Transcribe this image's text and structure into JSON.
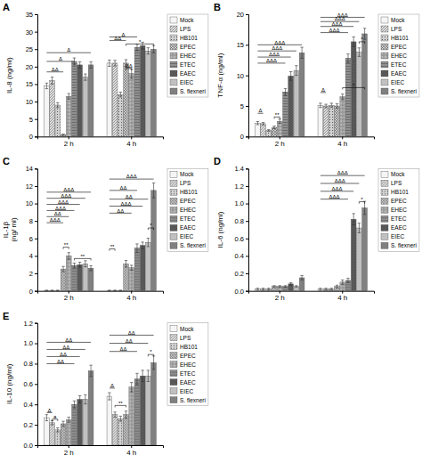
{
  "chart_data": [
    {
      "type": "bar",
      "title": "A",
      "ylabel": "IL-8 (ng/ml)",
      "categories": [
        "2 h",
        "4 h"
      ],
      "ylim": [
        0,
        35
      ],
      "yticks": [
        0,
        5,
        10,
        15,
        20,
        25,
        30,
        35
      ],
      "grid": false,
      "legend": "right",
      "series": [
        {
          "name": "Mock",
          "color": "#f5f5f5",
          "values": [
            14.5,
            21.0
          ],
          "errors": [
            0.8,
            0.9
          ]
        },
        {
          "name": "LPS",
          "color": "#e0e0e0",
          "values": [
            16.0,
            21.0
          ],
          "errors": [
            1.0,
            0.8
          ]
        },
        {
          "name": "HB101",
          "color": "#d0d0d0",
          "values": [
            9.0,
            12.0
          ],
          "errors": [
            0.7,
            0.7
          ]
        },
        {
          "name": "EPEC",
          "color": "#d0d0d0",
          "values": [
            0.5,
            21.0
          ],
          "errors": [
            0.2,
            1.0
          ]
        },
        {
          "name": "EHEC",
          "color": "#b8b8b8",
          "values": [
            11.5,
            18.0
          ],
          "errors": [
            0.8,
            1.3
          ]
        },
        {
          "name": "ETEC",
          "color": "#909090",
          "values": [
            21.5,
            25.5
          ],
          "errors": [
            1.0,
            0.9
          ]
        },
        {
          "name": "EAEC",
          "color": "#606060",
          "values": [
            20.5,
            26.0
          ],
          "errors": [
            0.9,
            1.0
          ]
        },
        {
          "name": "EIEC",
          "color": "#c0c0c0",
          "values": [
            17.0,
            24.5
          ],
          "errors": [
            0.9,
            0.9
          ]
        },
        {
          "name": "S. flexneri",
          "color": "#808080",
          "values": [
            20.5,
            25.0
          ],
          "errors": [
            0.9,
            1.0
          ]
        }
      ],
      "annotations": [
        {
          "text": "ΔΔ",
          "category": "2 h",
          "from": "Mock",
          "to": "EPEC",
          "y": 18.5
        },
        {
          "text": "Δ",
          "category": "2 h",
          "from": "Mock",
          "to": "ETEC",
          "y": 21.5
        },
        {
          "text": "Δ",
          "category": "2 h",
          "from": "Mock",
          "to": "S. flexneri",
          "y": 24.0
        },
        {
          "text": "ΔΔ",
          "category": "4 h",
          "from": "EPEC",
          "to": "EHEC",
          "y": 19.5,
          "bracket": true
        },
        {
          "text": "ΔΔ",
          "category": "4 h",
          "from": "Mock",
          "to": "EPEC",
          "y": 27.5
        },
        {
          "text": "Δ",
          "category": "4 h",
          "from": "Mock",
          "to": "ETEC",
          "y": 28.5
        },
        {
          "text": "*",
          "category": "4 h",
          "from": "EPEC",
          "to": "S. flexneri",
          "y": 26.5,
          "bracket": true
        }
      ]
    },
    {
      "type": "bar",
      "title": "B",
      "ylabel": "TNF-α (ng/ml)",
      "categories": [
        "2 h",
        "4 h"
      ],
      "ylim": [
        0,
        20
      ],
      "yticks": [
        0,
        5,
        10,
        15,
        20
      ],
      "grid": false,
      "legend": "right",
      "series": [
        {
          "name": "Mock",
          "color": "#f5f5f5",
          "values": [
            2.2,
            5.1
          ],
          "errors": [
            0.25,
            0.35
          ]
        },
        {
          "name": "LPS",
          "color": "#e0e0e0",
          "values": [
            2.1,
            5.0
          ],
          "errors": [
            0.2,
            0.28
          ]
        },
        {
          "name": "HB101",
          "color": "#d0d0d0",
          "values": [
            1.0,
            5.1
          ],
          "errors": [
            0.15,
            0.35
          ]
        },
        {
          "name": "EPEC",
          "color": "#d0d0d0",
          "values": [
            1.5,
            5.0
          ],
          "errors": [
            0.2,
            0.35
          ]
        },
        {
          "name": "EHEC",
          "color": "#b8b8b8",
          "values": [
            2.5,
            6.5
          ],
          "errors": [
            0.35,
            0.45
          ]
        },
        {
          "name": "ETEC",
          "color": "#909090",
          "values": [
            7.3,
            12.8
          ],
          "errors": [
            0.55,
            0.7
          ]
        },
        {
          "name": "EAEC",
          "color": "#606060",
          "values": [
            9.9,
            15.5
          ],
          "errors": [
            0.7,
            0.8
          ]
        },
        {
          "name": "EIEC",
          "color": "#c0c0c0",
          "values": [
            10.8,
            13.8
          ],
          "errors": [
            0.8,
            0.7
          ]
        },
        {
          "name": "S. flexneri",
          "color": "#808080",
          "values": [
            13.7,
            16.8
          ],
          "errors": [
            0.9,
            0.9
          ]
        }
      ],
      "annotations": [
        {
          "text": "ΔΔΔ",
          "category": "2 h",
          "from": "Mock",
          "to": "ETEC",
          "y": 12.0
        },
        {
          "text": "ΔΔΔ",
          "category": "2 h",
          "from": "Mock",
          "to": "EAEC",
          "y": 13.0
        },
        {
          "text": "ΔΔΔ",
          "category": "2 h",
          "from": "Mock",
          "to": "EIEC",
          "y": 14.0
        },
        {
          "text": "ΔΔΔ",
          "category": "2 h",
          "from": "Mock",
          "to": "S. flexneri",
          "y": 15.0
        },
        {
          "text": "Δ",
          "category": "2 h",
          "from": "Mock",
          "to": "LPS",
          "y": 3.8
        },
        {
          "text": "**",
          "category": "2 h",
          "from": "EPEC",
          "to": "EHEC",
          "y": 3.2,
          "bracket": true
        },
        {
          "text": "Δ",
          "category": "4 h",
          "from": "Mock",
          "to": "LPS",
          "y": 7.2
        },
        {
          "text": "*",
          "category": "4 h",
          "from": "EHEC",
          "to": "S. flexneri",
          "y": 8.0,
          "bracket": true
        },
        {
          "text": "ΔΔΔ",
          "category": "4 h",
          "from": "Mock",
          "to": "ETEC",
          "y": 17.0
        },
        {
          "text": "ΔΔΔ",
          "category": "4 h",
          "from": "Mock",
          "to": "EAEC",
          "y": 18.0
        },
        {
          "text": "ΔΔΔ",
          "category": "4 h",
          "from": "Mock",
          "to": "EIEC",
          "y": 18.8
        },
        {
          "text": "ΔΔΔ",
          "category": "4 h",
          "from": "Mock",
          "to": "S. flexneri",
          "y": 19.5
        },
        {
          "text": "*",
          "category": "4 h",
          "from": "EIEC",
          "to": "S. flexneri",
          "y": 15.5,
          "bracket": true
        }
      ]
    },
    {
      "type": "bar",
      "title": "C",
      "ylabel": "IL-1β\n(ng/ ml)",
      "categories": [
        "2 h",
        "4 h"
      ],
      "ylim": [
        0,
        14
      ],
      "yticks": [
        0,
        2,
        4,
        6,
        8,
        10,
        12,
        14
      ],
      "grid": false,
      "legend": "right",
      "series": [
        {
          "name": "Mock",
          "color": "#f5f5f5",
          "values": [
            0.05,
            0.05
          ],
          "errors": [
            0.02,
            0.02
          ]
        },
        {
          "name": "LPS",
          "color": "#e0e0e0",
          "values": [
            0.05,
            0.05
          ],
          "errors": [
            0.02,
            0.02
          ]
        },
        {
          "name": "HB101",
          "color": "#d0d0d0",
          "values": [
            0.05,
            0.05
          ],
          "errors": [
            0.02,
            0.02
          ]
        },
        {
          "name": "EPEC",
          "color": "#d0d0d0",
          "values": [
            2.5,
            3.1
          ],
          "errors": [
            0.3,
            0.38
          ]
        },
        {
          "name": "EHEC",
          "color": "#b8b8b8",
          "values": [
            4.0,
            2.65
          ],
          "errors": [
            0.38,
            0.28
          ]
        },
        {
          "name": "ETEC",
          "color": "#909090",
          "values": [
            2.9,
            4.9
          ],
          "errors": [
            0.28,
            0.48
          ]
        },
        {
          "name": "EAEC",
          "color": "#606060",
          "values": [
            3.0,
            5.2
          ],
          "errors": [
            0.28,
            0.38
          ]
        },
        {
          "name": "EIEC",
          "color": "#c0c0c0",
          "values": [
            3.1,
            5.55
          ],
          "errors": [
            0.35,
            0.48
          ]
        },
        {
          "name": "S. flexneri",
          "color": "#808080",
          "values": [
            2.6,
            11.5
          ],
          "errors": [
            0.28,
            0.85
          ]
        }
      ],
      "annotations": [
        {
          "text": "ΔΔΔ",
          "category": "2 h",
          "from": "Mock",
          "to": "EPEC",
          "y": 7.8
        },
        {
          "text": "ΔΔ",
          "category": "2 h",
          "from": "Mock",
          "to": "EHEC",
          "y": 8.5
        },
        {
          "text": "ΔΔΔ",
          "category": "2 h",
          "from": "Mock",
          "to": "ETEC",
          "y": 9.2
        },
        {
          "text": "ΔΔΔ",
          "category": "2 h",
          "from": "Mock",
          "to": "EAEC",
          "y": 9.9
        },
        {
          "text": "ΔΔΔ",
          "category": "2 h",
          "from": "Mock",
          "to": "EIEC",
          "y": 10.6
        },
        {
          "text": "ΔΔΔ",
          "category": "2 h",
          "from": "Mock",
          "to": "S. flexneri",
          "y": 11.3
        },
        {
          "text": "**",
          "category": "2 h",
          "from": "EPEC",
          "to": "EHEC",
          "y": 5.0,
          "bracket": true
        },
        {
          "text": "**",
          "category": "2 h",
          "from": "ETEC",
          "to": "S. flexneri",
          "y": 3.7,
          "bracket": true
        },
        {
          "text": "ΔΔΔ",
          "category": "4 h",
          "from": "Mock",
          "to": "S. flexneri",
          "y": 12.8
        },
        {
          "text": "ΔΔ",
          "category": "4 h",
          "from": "Mock",
          "to": "ETEC",
          "y": 11.5
        },
        {
          "text": "ΔΔ",
          "category": "4 h",
          "from": "Mock",
          "to": "EIEC",
          "y": 10.5
        },
        {
          "text": "ΔΔΔ",
          "category": "4 h",
          "from": "Mock",
          "to": "EAEC",
          "y": 9.7
        },
        {
          "text": "ΔΔ",
          "category": "4 h",
          "from": "Mock",
          "to": "EHEC",
          "y": 8.9
        },
        {
          "text": "**",
          "category": "4 h",
          "from": "Mock",
          "to": "LPS",
          "y": 4.8,
          "bracket": true
        },
        {
          "text": "*",
          "category": "4 h",
          "from": "EIEC",
          "to": "S. flexneri",
          "y": 7.2,
          "bracket": true
        }
      ]
    },
    {
      "type": "bar",
      "title": "D",
      "ylabel": "IL-6 (ng/ml)",
      "categories": [
        "2 h",
        "4 h"
      ],
      "ylim": [
        0,
        1.4
      ],
      "yticks": [
        {
          "value": 0,
          "label": "0.0"
        },
        0.2,
        0.4,
        0.6,
        0.8,
        {
          "value": 1,
          "label": "1.0"
        },
        1.2,
        1.4
      ],
      "grid": false,
      "legend": "right",
      "series": [
        {
          "name": "Mock",
          "color": "#f5f5f5",
          "values": [
            0.02,
            0.02
          ],
          "errors": [
            0.01,
            0.01
          ]
        },
        {
          "name": "LPS",
          "color": "#e0e0e0",
          "values": [
            0.02,
            0.02
          ],
          "errors": [
            0.01,
            0.01
          ]
        },
        {
          "name": "HB101",
          "color": "#d0d0d0",
          "values": [
            0.02,
            0.02
          ],
          "errors": [
            0.01,
            0.01
          ]
        },
        {
          "name": "EPEC",
          "color": "#d0d0d0",
          "values": [
            0.05,
            0.05
          ],
          "errors": [
            0.01,
            0.015
          ]
        },
        {
          "name": "EHEC",
          "color": "#b8b8b8",
          "values": [
            0.05,
            0.1
          ],
          "errors": [
            0.01,
            0.025
          ]
        },
        {
          "name": "ETEC",
          "color": "#909090",
          "values": [
            0.05,
            0.12
          ],
          "errors": [
            0.01,
            0.025
          ]
        },
        {
          "name": "EAEC",
          "color": "#606060",
          "values": [
            0.08,
            0.82
          ],
          "errors": [
            0.015,
            0.065
          ]
        },
        {
          "name": "EIEC",
          "color": "#c0c0c0",
          "values": [
            0.05,
            0.72
          ],
          "errors": [
            0.01,
            0.055
          ]
        },
        {
          "name": "S. flexneri",
          "color": "#808080",
          "values": [
            0.15,
            0.95
          ],
          "errors": [
            0.025,
            0.075
          ]
        }
      ],
      "annotations": [
        {
          "text": "ΔΔΔ",
          "category": "4 h",
          "from": "Mock",
          "to": "ETEC",
          "y": 1.05
        },
        {
          "text": "ΔΔΔ",
          "category": "4 h",
          "from": "Mock",
          "to": "EAEC",
          "y": 1.14
        },
        {
          "text": "ΔΔΔ",
          "category": "4 h",
          "from": "Mock",
          "to": "EIEC",
          "y": 1.23
        },
        {
          "text": "ΔΔΔ",
          "category": "4 h",
          "from": "Mock",
          "to": "S. flexneri",
          "y": 1.32
        },
        {
          "text": "*",
          "category": "4 h",
          "from": "EIEC",
          "to": "S. flexneri",
          "y": 1.02,
          "bracket": true
        }
      ]
    },
    {
      "type": "bar",
      "title": "E",
      "ylabel": "IL-10 (ng/ml)",
      "categories": [
        "2 h",
        "4 h"
      ],
      "ylim": [
        0,
        1.2
      ],
      "yticks": [
        {
          "value": 0,
          "label": "0.0"
        },
        0.2,
        0.4,
        0.6,
        0.8,
        {
          "value": 1,
          "label": "1.0"
        },
        1.2
      ],
      "grid": false,
      "legend": "right",
      "series": [
        {
          "name": "Mock",
          "color": "#f5f5f5",
          "values": [
            0.27,
            0.48
          ],
          "errors": [
            0.03,
            0.035
          ]
        },
        {
          "name": "LPS",
          "color": "#e0e0e0",
          "values": [
            0.22,
            0.3
          ],
          "errors": [
            0.02,
            0.025
          ]
        },
        {
          "name": "HB101",
          "color": "#d0d0d0",
          "values": [
            0.15,
            0.26
          ],
          "errors": [
            0.02,
            0.025
          ]
        },
        {
          "name": "EPEC",
          "color": "#d0d0d0",
          "values": [
            0.21,
            0.3
          ],
          "errors": [
            0.025,
            0.035
          ]
        },
        {
          "name": "EHEC",
          "color": "#b8b8b8",
          "values": [
            0.25,
            0.57
          ],
          "errors": [
            0.025,
            0.045
          ]
        },
        {
          "name": "ETEC",
          "color": "#909090",
          "values": [
            0.4,
            0.65
          ],
          "errors": [
            0.035,
            0.055
          ]
        },
        {
          "name": "EAEC",
          "color": "#606060",
          "values": [
            0.45,
            0.68
          ],
          "errors": [
            0.035,
            0.055
          ]
        },
        {
          "name": "EIEC",
          "color": "#c0c0c0",
          "values": [
            0.45,
            0.68
          ],
          "errors": [
            0.045,
            0.055
          ]
        },
        {
          "name": "S. flexneri",
          "color": "#808080",
          "values": [
            0.73,
            0.81
          ],
          "errors": [
            0.055,
            0.065
          ]
        }
      ],
      "annotations": [
        {
          "text": "Δ",
          "category": "2 h",
          "from": "Mock",
          "to": "LPS",
          "y": 0.32
        },
        {
          "text": "ΔΔ",
          "category": "2 h",
          "from": "Mock",
          "to": "ETEC",
          "y": 0.8
        },
        {
          "text": "ΔΔ",
          "category": "2 h",
          "from": "Mock",
          "to": "EAEC",
          "y": 0.87
        },
        {
          "text": "ΔΔ",
          "category": "2 h",
          "from": "Mock",
          "to": "EIEC",
          "y": 0.94
        },
        {
          "text": "ΔΔ",
          "category": "2 h",
          "from": "Mock",
          "to": "S. flexneri",
          "y": 1.01
        },
        {
          "text": "a",
          "category": "2 h",
          "from": "LPS",
          "to": "HB101",
          "y": 0.255,
          "bracket": true
        },
        {
          "text": "Δ",
          "category": "4 h",
          "from": "Mock",
          "to": "LPS",
          "y": 0.56
        },
        {
          "text": "**",
          "category": "4 h",
          "from": "LPS",
          "to": "EPEC",
          "y": 0.39,
          "bracket": true
        },
        {
          "text": "ΔΔ",
          "category": "4 h",
          "from": "Mock",
          "to": "ETEC",
          "y": 0.92
        },
        {
          "text": "ΔΔ",
          "category": "4 h",
          "from": "Mock",
          "to": "EIEC",
          "y": 1.0
        },
        {
          "text": "ΔΔ",
          "category": "4 h",
          "from": "Mock",
          "to": "S. flexneri",
          "y": 1.08
        },
        {
          "text": "*",
          "category": "4 h",
          "from": "EIEC",
          "to": "S. flexneri",
          "y": 0.89,
          "bracket": true
        }
      ]
    }
  ]
}
